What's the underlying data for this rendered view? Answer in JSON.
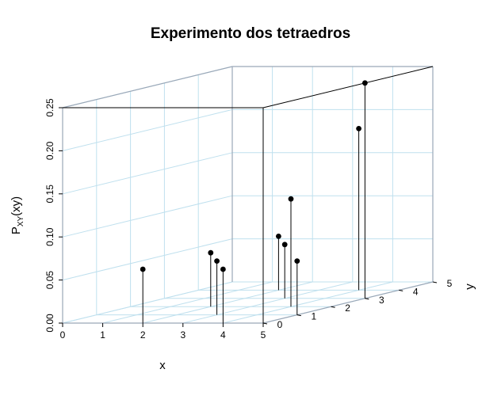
{
  "chart_data": {
    "type": "scatter3d",
    "title": "Experimento dos tetraedros",
    "xlabel": "x",
    "ylabel": "y",
    "zlabel_main": "P",
    "zlabel_sub": "XY",
    "zlabel_rest": "(xy)",
    "xlim": [
      0,
      5
    ],
    "ylim": [
      0,
      5
    ],
    "zlim": [
      0,
      0.25
    ],
    "x_ticks": [
      "0",
      "1",
      "2",
      "3",
      "4",
      "5"
    ],
    "y_ticks": [
      "0",
      "1",
      "2",
      "3",
      "4",
      "5"
    ],
    "z_ticks": [
      "0.00",
      "0.05",
      "0.10",
      "0.15",
      "0.20",
      "0.25"
    ],
    "grid": true,
    "style": "h",
    "points": [
      {
        "x": 2,
        "y": 0,
        "z": 0.0625
      },
      {
        "x": 2,
        "y": 2,
        "z": 0.0625
      },
      {
        "x": 2,
        "y": 4,
        "z": 0.0625
      },
      {
        "x": 3,
        "y": 1,
        "z": 0.0625
      },
      {
        "x": 3,
        "y": 3,
        "z": 0.0625
      },
      {
        "x": 4,
        "y": 0,
        "z": 0.0625
      },
      {
        "x": 4,
        "y": 2,
        "z": 0.125
      },
      {
        "x": 4,
        "y": 4,
        "z": 0.1875
      },
      {
        "x": 5,
        "y": 1,
        "z": 0.0625
      },
      {
        "x": 5,
        "y": 3,
        "z": 0.25
      }
    ]
  },
  "colors": {
    "grid": "#bfe0ee",
    "box": "#9aa8b8",
    "stem": "#000000",
    "point": "#000000"
  }
}
